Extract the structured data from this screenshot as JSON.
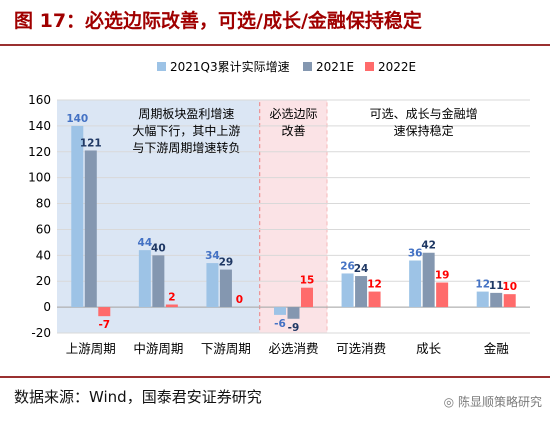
{
  "title": "图 17：必选边际改善，可选/成长/金融保持稳定",
  "source": "数据来源：Wind，国泰君安证券研究",
  "watermark": "陈显顺策略研究",
  "chart_data": {
    "type": "bar",
    "categories": [
      "上游周期",
      "中游周期",
      "下游周期",
      "必选消费",
      "可选消费",
      "成长",
      "金融"
    ],
    "series": [
      {
        "name": "2021Q3累计实际增速",
        "color": "#9dc3e6",
        "label_color": "#4472c4",
        "values": [
          140,
          44,
          34,
          -6,
          26,
          36,
          12
        ]
      },
      {
        "name": "2021E",
        "color": "#8497b0",
        "label_color": "#1f3864",
        "values": [
          121,
          40,
          29,
          -9,
          24,
          42,
          11
        ]
      },
      {
        "name": "2022E",
        "color": "#ff6b6b",
        "label_color": "#ff0000",
        "values": [
          -7,
          2,
          0,
          15,
          12,
          19,
          10
        ]
      }
    ],
    "ylim": [
      -20,
      160
    ],
    "yticks": [
      -20,
      0,
      20,
      40,
      60,
      80,
      100,
      120,
      140,
      160
    ],
    "legend_position": "top",
    "grid": true,
    "regions": [
      {
        "text_lines": [
          "周期板块盈利增速",
          "大幅下行，其中上游",
          "与下游周期增速转负"
        ],
        "color": "#dbe6f4"
      },
      {
        "text_lines": [
          "必选边际",
          "改善"
        ],
        "color": "#fbe3e6"
      },
      {
        "text_lines": [
          "可选、成长与金融增",
          "速保持稳定"
        ],
        "color": "#ffffff"
      }
    ]
  }
}
